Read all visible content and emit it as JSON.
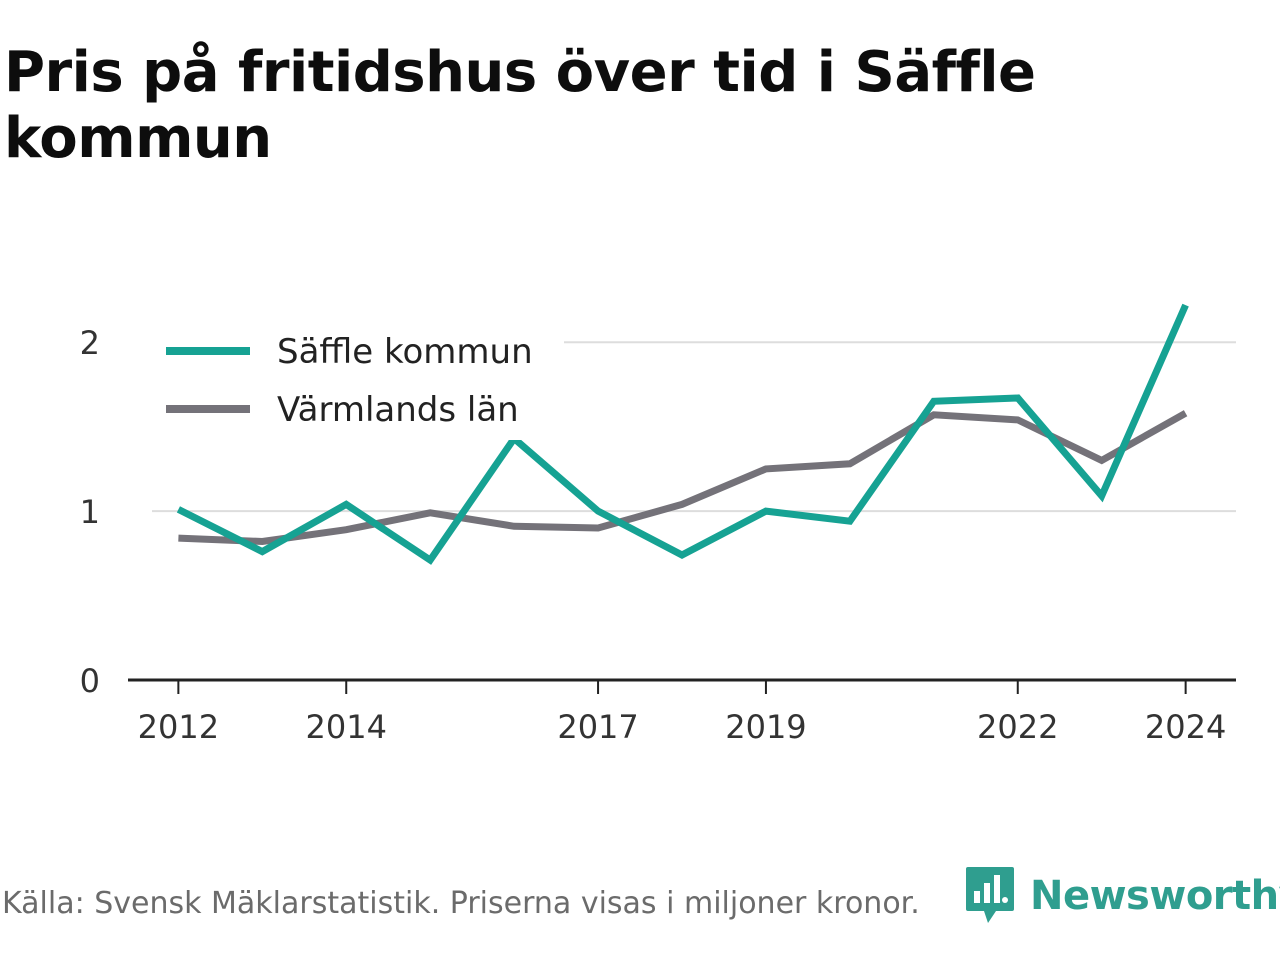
{
  "title": "Pris på fritidshus över tid i Säffle kommun",
  "footer": "Källa: Svensk Mäklarstatistik. Priserna visas i miljoner kronor.",
  "brand": {
    "name": "Newsworthy",
    "icon": "newsworthy-logo-icon",
    "color": "#2f9e8f"
  },
  "colors": {
    "grid": "#dddddd",
    "axis": "#222222",
    "text": "#333333"
  },
  "chart_data": {
    "type": "line",
    "title": "Pris på fritidshus över tid i Säffle kommun",
    "xlabel": "",
    "ylabel": "",
    "x": [
      2012,
      2013,
      2014,
      2015,
      2016,
      2017,
      2018,
      2019,
      2020,
      2021,
      2022,
      2023,
      2024
    ],
    "x_ticks": [
      "2012",
      "2014",
      "2017",
      "2019",
      "2022",
      "2024"
    ],
    "y_ticks": [
      "0",
      "1",
      "2"
    ],
    "ylim": [
      0,
      2.25
    ],
    "xlim": [
      2011.4,
      2024.6
    ],
    "grid": true,
    "legend_position": "top-left",
    "series": [
      {
        "name": "Säffle kommun",
        "color": "#16a293",
        "values": [
          1.01,
          0.76,
          1.04,
          0.71,
          1.43,
          1.0,
          0.74,
          1.0,
          0.94,
          1.65,
          1.67,
          1.09,
          2.22
        ]
      },
      {
        "name": "Värmlands län",
        "color": "#747279",
        "values": [
          0.84,
          0.82,
          0.89,
          0.99,
          0.91,
          0.9,
          1.04,
          1.25,
          1.28,
          1.57,
          1.54,
          1.3,
          1.58
        ]
      }
    ]
  }
}
